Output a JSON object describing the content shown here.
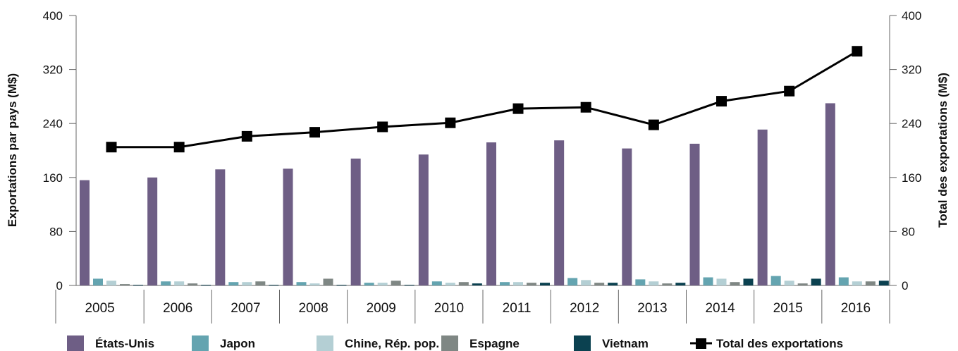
{
  "chart_data": {
    "type": "bar",
    "categories": [
      "2005",
      "2006",
      "2007",
      "2008",
      "2009",
      "2010",
      "2011",
      "2012",
      "2013",
      "2014",
      "2015",
      "2016"
    ],
    "series": [
      {
        "name": "États-Unis",
        "color": "#6e5e85",
        "values": [
          156,
          160,
          172,
          173,
          188,
          194,
          212,
          215,
          203,
          210,
          231,
          270
        ]
      },
      {
        "name": "Japon",
        "color": "#64a4b0",
        "values": [
          10,
          6,
          5,
          5,
          4,
          6,
          5,
          11,
          9,
          12,
          14,
          12
        ]
      },
      {
        "name": "Chine, Rép. pop.",
        "color": "#b4cfd4",
        "values": [
          7,
          6,
          5,
          3,
          4,
          4,
          5,
          8,
          6,
          10,
          7,
          6
        ]
      },
      {
        "name": "Espagne",
        "color": "#7f8784",
        "values": [
          2,
          3,
          6,
          10,
          7,
          5,
          4,
          4,
          3,
          5,
          3,
          6
        ]
      },
      {
        "name": "Vietnam",
        "color": "#0b4150",
        "values": [
          1,
          1,
          1,
          1,
          1,
          3,
          4,
          4,
          4,
          10,
          10,
          7
        ]
      }
    ],
    "line": {
      "name": "Total des exportations",
      "color": "#000000",
      "values": [
        205,
        205,
        221,
        227,
        235,
        241,
        262,
        264,
        238,
        273,
        288,
        347
      ]
    },
    "ylabel": "Exportations par pays (M$)",
    "ylabel_right": "Total des exportations (M$)",
    "ylim": [
      0,
      400
    ],
    "yticks": [
      "0",
      "80",
      "160",
      "240",
      "320",
      "400"
    ],
    "grid": false,
    "legend_position": "bottom"
  }
}
